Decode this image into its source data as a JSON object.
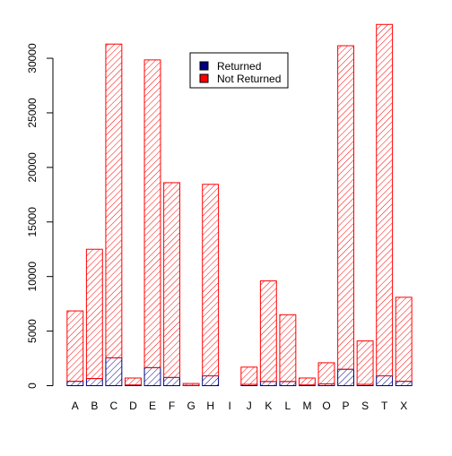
{
  "chart_data": {
    "type": "bar",
    "stacked": true,
    "categories": [
      "A",
      "B",
      "C",
      "D",
      "E",
      "F",
      "G",
      "H",
      "I",
      "J",
      "K",
      "L",
      "M",
      "O",
      "P",
      "S",
      "T",
      "X"
    ],
    "series": [
      {
        "name": "Returned",
        "color": "#000080",
        "values": [
          400,
          650,
          2550,
          60,
          1650,
          750,
          20,
          900,
          0,
          120,
          380,
          380,
          60,
          160,
          1500,
          120,
          900,
          400
        ]
      },
      {
        "name": "Not Returned",
        "color": "#ff0000",
        "values": [
          6450,
          11850,
          28750,
          640,
          28200,
          17850,
          180,
          17550,
          0,
          1580,
          9220,
          6120,
          640,
          1940,
          29650,
          3980,
          32200,
          7700
        ]
      }
    ],
    "ylim": [
      0,
      33000
    ],
    "yticks": [
      0,
      5000,
      10000,
      15000,
      20000,
      25000,
      30000
    ],
    "fill": "hatched",
    "legend": {
      "position": "top-center",
      "entries": [
        "Returned",
        "Not Returned"
      ]
    },
    "grid": false,
    "title": "",
    "xlabel": "",
    "ylabel": ""
  }
}
